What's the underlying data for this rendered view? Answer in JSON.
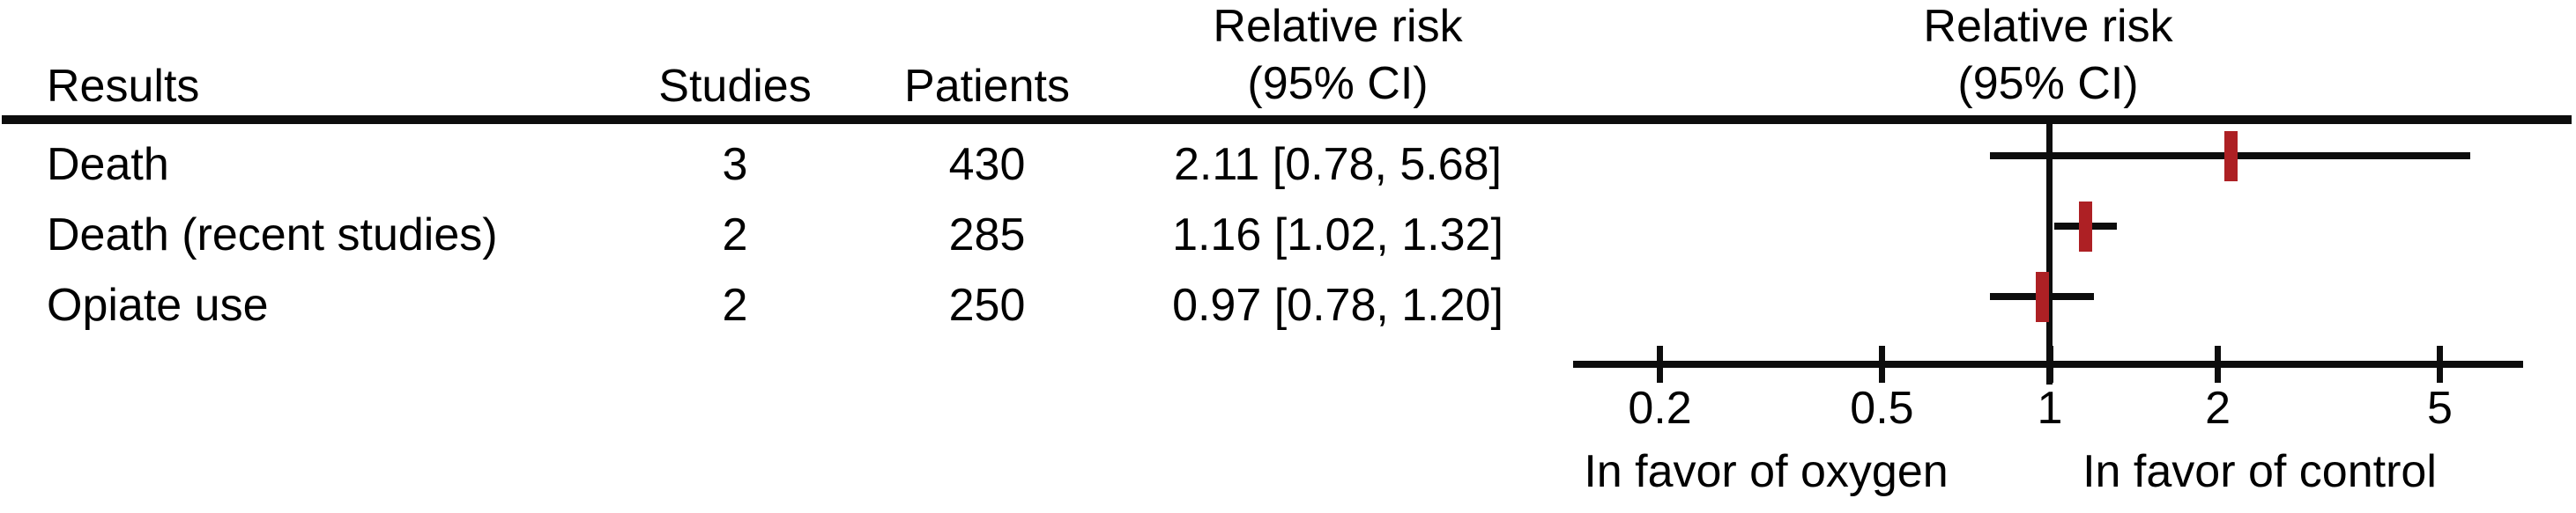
{
  "figure": {
    "table": {
      "headers": {
        "results": "Results",
        "studies": "Studies",
        "patients": "Patients",
        "rr_line1": "Relative risk",
        "rr_line2": "(95% CI)"
      },
      "rows": [
        {
          "result": "Death",
          "studies": "3",
          "patients": "430",
          "rr_text": "2.11 [0.78, 5.68]"
        },
        {
          "result": "Death (recent studies)",
          "studies": "2",
          "patients": "285",
          "rr_text": "1.16 [1.02, 1.32]"
        },
        {
          "result": "Opiate use",
          "studies": "2",
          "patients": "250",
          "rr_text": "0.97 [0.78, 1.20]"
        }
      ]
    },
    "plot": {
      "title_line1": "Relative risk",
      "title_line2": "(95% CI)",
      "favor_left": "In favor of oxygen",
      "favor_right": "In favor of control"
    },
    "colors": {
      "line": "#0D0D0D",
      "marker": "#AD2024"
    }
  },
  "chart_data": {
    "type": "forest",
    "x_scale": "log",
    "x_ticks": [
      0.2,
      0.5,
      1,
      2,
      5
    ],
    "x_tick_labels": [
      "0.2",
      "0.5",
      "1",
      "2",
      "5"
    ],
    "x_range": [
      0.14,
      7.0
    ],
    "reference_line": 1,
    "title": "Relative risk (95% CI)",
    "axis_annotation_left": "In favor of oxygen",
    "axis_annotation_right": "In favor of control",
    "series": [
      {
        "label": "Death",
        "studies": 3,
        "patients": 430,
        "estimate": 2.11,
        "ci_low": 0.78,
        "ci_high": 5.68
      },
      {
        "label": "Death (recent studies)",
        "studies": 2,
        "patients": 285,
        "estimate": 1.16,
        "ci_low": 1.02,
        "ci_high": 1.32
      },
      {
        "label": "Opiate use",
        "studies": 2,
        "patients": 250,
        "estimate": 0.97,
        "ci_low": 0.78,
        "ci_high": 1.2
      }
    ]
  }
}
